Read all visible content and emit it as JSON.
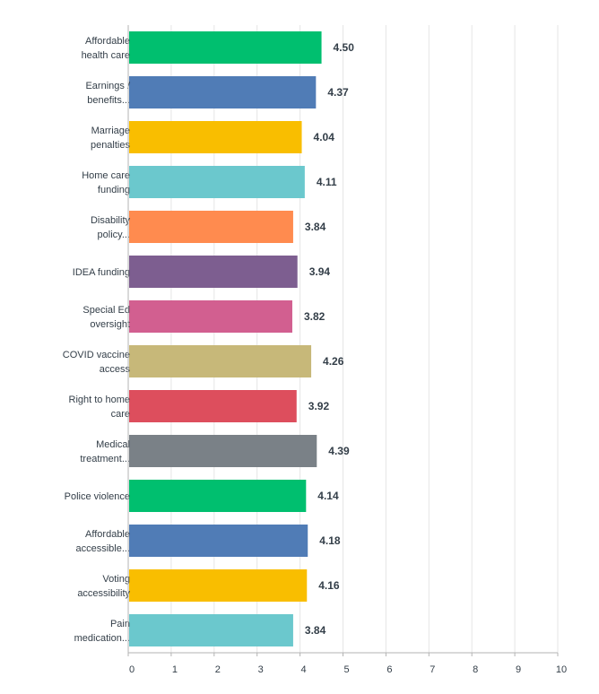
{
  "chart_data": {
    "type": "bar",
    "orientation": "horizontal",
    "title": "",
    "xlabel": "",
    "ylabel": "",
    "xlim": [
      0,
      10
    ],
    "x_ticks": [
      "0",
      "1",
      "2",
      "3",
      "4",
      "5",
      "6",
      "7",
      "8",
      "9",
      "10"
    ],
    "grid": true,
    "categories": [
      [
        "Affordable",
        "health care"
      ],
      [
        "Earnings /",
        "benefits..."
      ],
      [
        "Marriage",
        "penalties"
      ],
      [
        "Home care",
        "funding"
      ],
      [
        "Disability",
        "policy..."
      ],
      [
        "IDEA funding"
      ],
      [
        "Special Ed",
        "oversight"
      ],
      [
        "COVID vaccine",
        "access"
      ],
      [
        "Right to home",
        "care"
      ],
      [
        "Medical",
        "treatment..."
      ],
      [
        "Police violence"
      ],
      [
        "Affordable",
        "accessible..."
      ],
      [
        "Voting",
        "accessibility"
      ],
      [
        "Pain",
        "medication..."
      ]
    ],
    "values": [
      4.5,
      4.37,
      4.04,
      4.11,
      3.84,
      3.94,
      3.82,
      4.26,
      3.92,
      4.39,
      4.14,
      4.18,
      4.16,
      3.84
    ],
    "value_labels": [
      "4.50",
      "4.37",
      "4.04",
      "4.11",
      "3.84",
      "3.94",
      "3.82",
      "4.26",
      "3.92",
      "4.39",
      "4.14",
      "4.18",
      "4.16",
      "3.84"
    ],
    "colors": [
      "#00bf6f",
      "#507cb6",
      "#f9be00",
      "#6bc8cd",
      "#ff8b4f",
      "#7d5e90",
      "#d25f90",
      "#c7b879",
      "#dd4e5d",
      "#7a8187",
      "#00bf6f",
      "#507cb6",
      "#f9be00",
      "#6bc8cd"
    ]
  }
}
